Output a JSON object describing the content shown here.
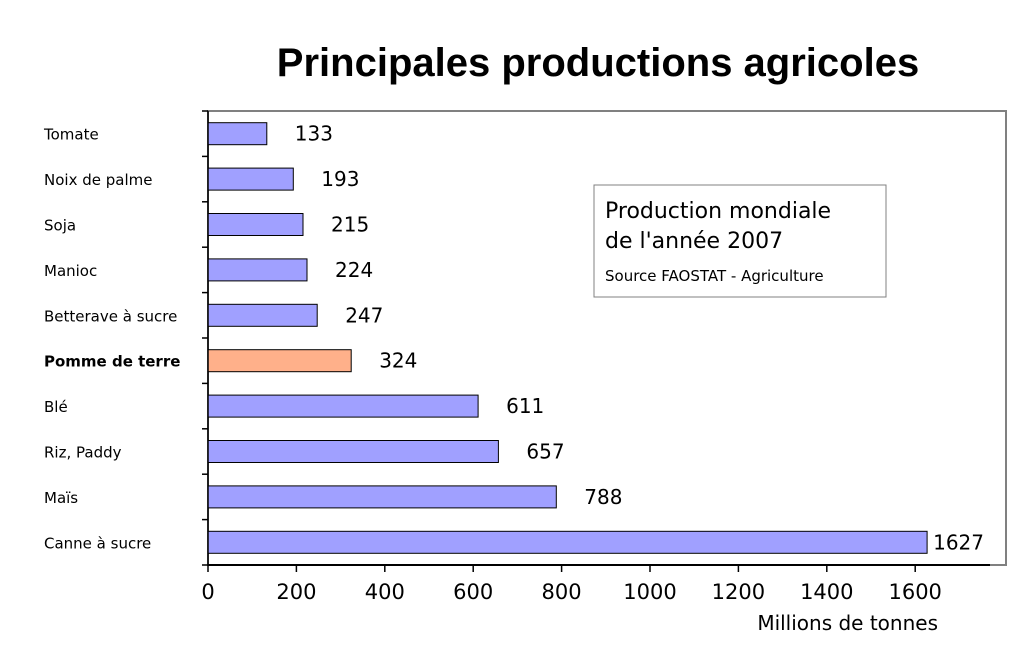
{
  "chart_data": {
    "type": "bar",
    "orientation": "horizontal",
    "title": "Principales productions agricoles",
    "categories": [
      "Canne à sucre",
      "Maïs",
      "Riz, Paddy",
      "Blé",
      "Pomme de terre",
      "Betterave à sucre",
      "Manioc",
      "Soja",
      "Noix de palme",
      "Tomate"
    ],
    "values": [
      1627,
      788,
      657,
      611,
      324,
      247,
      224,
      215,
      193,
      133
    ],
    "value_labels": [
      "1627",
      "788",
      "657",
      "611",
      "324",
      "247",
      "224",
      "215",
      "193",
      "133"
    ],
    "highlighted_category": "Pomme de terre",
    "xlabel": "Millions de tonnes",
    "ylabel": "",
    "xlim": [
      0,
      1770
    ],
    "x_ticks": [
      0,
      200,
      400,
      600,
      800,
      1000,
      1200,
      1400,
      1600
    ],
    "grid": false,
    "legend": {
      "placement": "top-right",
      "line1": "Production mondiale",
      "line2": "de l'année 2007",
      "source": "Source FAOSTAT - Agriculture"
    },
    "colors": {
      "bar": "#a0a0ff",
      "highlight_bar": "#ffb08a",
      "bar_stroke": "#000000",
      "frame": "#808080"
    }
  }
}
